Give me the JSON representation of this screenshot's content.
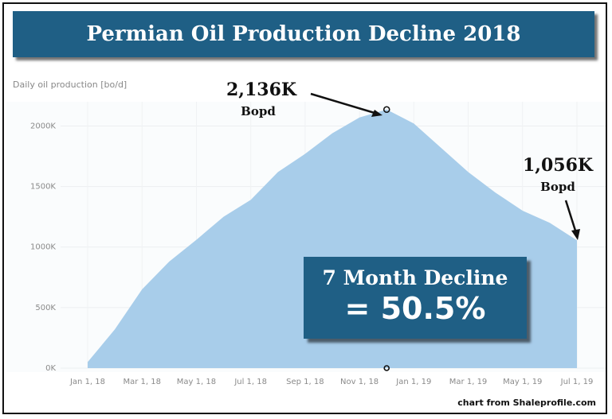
{
  "title": "Permian Oil Production Decline 2018",
  "chart_data": {
    "type": "area",
    "title": "Permian Oil Production Decline 2018",
    "ylabel": "Daily oil production [bo/d]",
    "xlabel": "",
    "ylim": [
      0,
      2200000
    ],
    "grid": true,
    "y_ticks": [
      {
        "value": 0,
        "label": "0K"
      },
      {
        "value": 500000,
        "label": "500K"
      },
      {
        "value": 1000000,
        "label": "1000K"
      },
      {
        "value": 1500000,
        "label": "1500K"
      },
      {
        "value": 2000000,
        "label": "2000K"
      }
    ],
    "x_ticks": [
      "Jan 1, 18",
      "Mar 1, 18",
      "May 1, 18",
      "Jul 1, 18",
      "Sep 1, 18",
      "Nov 1, 18",
      "Jan 1, 19",
      "Mar 1, 19",
      "May 1, 19",
      "Jul 1, 19"
    ],
    "x": [
      "2018-01",
      "2018-02",
      "2018-03",
      "2018-04",
      "2018-05",
      "2018-06",
      "2018-07",
      "2018-08",
      "2018-09",
      "2018-10",
      "2018-11",
      "2018-12",
      "2019-01",
      "2019-02",
      "2019-03",
      "2019-04",
      "2019-05",
      "2019-06",
      "2019-07"
    ],
    "series": [
      {
        "values": [
          50000,
          320000,
          650000,
          880000,
          1060000,
          1250000,
          1390000,
          1620000,
          1770000,
          1940000,
          2070000,
          2136000,
          2020000,
          1820000,
          1620000,
          1450000,
          1300000,
          1200000,
          1056000
        ]
      }
    ],
    "fill_color": "#a8cdea"
  },
  "annotations": {
    "peak": {
      "value": "2,136K",
      "unit": "Bopd"
    },
    "latest": {
      "value": "1,056K",
      "unit": "Bopd"
    },
    "decline_line1": "7 Month Decline",
    "decline_line2": "= 50.5%"
  },
  "credit": "chart from Shaleprofile.com"
}
